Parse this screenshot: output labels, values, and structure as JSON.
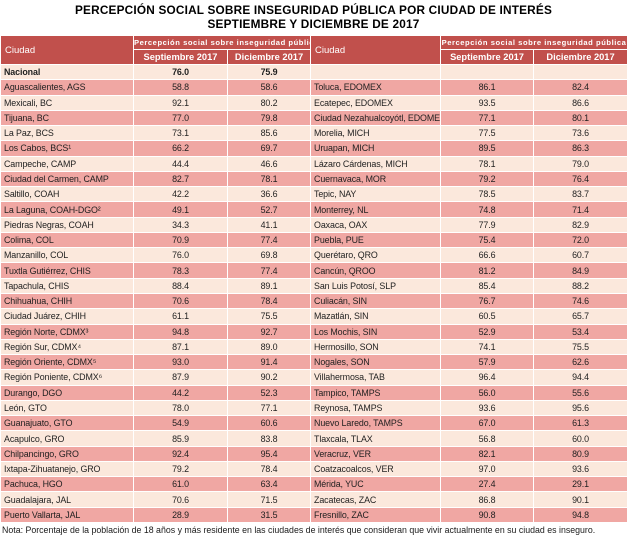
{
  "title": {
    "line1": "PERCEPCIÓN SOCIAL SOBRE INSEGURIDAD PÚBLICA POR CIUDAD DE INTERÉS",
    "line2": "SEPTIEMBRE Y DICIEMBRE DE 2017"
  },
  "colors": {
    "header_bg": "#C1504C",
    "row_dark": "#F0A7A3",
    "row_light": "#FBE8DC",
    "border": "#FFFFFF",
    "header_text": "#FFFFFF",
    "body_text": "#1F1F1F"
  },
  "table": {
    "city_header": "Ciudad",
    "group_header": "Percepción social sobre inseguridad pública",
    "sub_headers": {
      "september": "Septiembre 2017",
      "december": "Diciembre 2017"
    },
    "national": {
      "city": "Nacional",
      "sep": "76.0",
      "dec": "75.9"
    },
    "left_rows": [
      {
        "city": "Aguascalientes, AGS",
        "sep": "58.8",
        "dec": "58.6"
      },
      {
        "city": "Mexicali, BC",
        "sep": "92.1",
        "dec": "80.2"
      },
      {
        "city": "Tijuana, BC",
        "sep": "77.0",
        "dec": "79.8"
      },
      {
        "city": "La Paz, BCS",
        "sep": "73.1",
        "dec": "85.6"
      },
      {
        "city": "Los Cabos, BCS¹",
        "sep": "66.2",
        "dec": "69.7"
      },
      {
        "city": "Campeche, CAMP",
        "sep": "44.4",
        "dec": "46.6"
      },
      {
        "city": "Ciudad del Carmen, CAMP",
        "sep": "82.7",
        "dec": "78.1"
      },
      {
        "city": "Saltillo, COAH",
        "sep": "42.2",
        "dec": "36.6"
      },
      {
        "city": "La Laguna, COAH-DGO²",
        "sep": "49.1",
        "dec": "52.7"
      },
      {
        "city": "Piedras Negras, COAH",
        "sep": "34.3",
        "dec": "41.1"
      },
      {
        "city": "Colima, COL",
        "sep": "70.9",
        "dec": "77.4"
      },
      {
        "city": "Manzanillo, COL",
        "sep": "76.0",
        "dec": "69.8"
      },
      {
        "city": "Tuxtla Gutiérrez, CHIS",
        "sep": "78.3",
        "dec": "77.4"
      },
      {
        "city": "Tapachula, CHIS",
        "sep": "88.4",
        "dec": "89.1"
      },
      {
        "city": "Chihuahua, CHIH",
        "sep": "70.6",
        "dec": "78.4"
      },
      {
        "city": "Ciudad Juárez, CHIH",
        "sep": "61.1",
        "dec": "75.5"
      },
      {
        "city": "Región Norte, CDMX³",
        "sep": "94.8",
        "dec": "92.7"
      },
      {
        "city": "Región Sur, CDMX⁴",
        "sep": "87.1",
        "dec": "89.0"
      },
      {
        "city": "Región Oriente, CDMX⁵",
        "sep": "93.0",
        "dec": "91.4"
      },
      {
        "city": "Región Poniente, CDMX⁶",
        "sep": "87.9",
        "dec": "90.2"
      },
      {
        "city": "Durango, DGO",
        "sep": "44.2",
        "dec": "52.3"
      },
      {
        "city": "León, GTO",
        "sep": "78.0",
        "dec": "77.1"
      },
      {
        "city": "Guanajuato, GTO",
        "sep": "54.9",
        "dec": "60.6"
      },
      {
        "city": "Acapulco, GRO",
        "sep": "85.9",
        "dec": "83.8"
      },
      {
        "city": "Chilpancingo, GRO",
        "sep": "92.4",
        "dec": "95.4"
      },
      {
        "city": "Ixtapa-Zihuatanejo, GRO",
        "sep": "79.2",
        "dec": "78.4"
      },
      {
        "city": "Pachuca, HGO",
        "sep": "61.0",
        "dec": "63.4"
      },
      {
        "city": "Guadalajara, JAL",
        "sep": "70.6",
        "dec": "71.5"
      },
      {
        "city": "Puerto Vallarta, JAL",
        "sep": "28.9",
        "dec": "31.5"
      }
    ],
    "right_rows": [
      {
        "city": "Toluca, EDOMEX",
        "sep": "86.1",
        "dec": "82.4"
      },
      {
        "city": "Ecatepec, EDOMEX",
        "sep": "93.5",
        "dec": "86.6"
      },
      {
        "city": "Ciudad Nezahualcoyótl, EDOMEX",
        "sep": "77.1",
        "dec": "80.1"
      },
      {
        "city": "Morelia, MICH",
        "sep": "77.5",
        "dec": "73.6"
      },
      {
        "city": "Uruapan, MICH",
        "sep": "89.5",
        "dec": "86.3"
      },
      {
        "city": "Lázaro Cárdenas, MICH",
        "sep": "78.1",
        "dec": "79.0"
      },
      {
        "city": "Cuernavaca, MOR",
        "sep": "79.2",
        "dec": "76.4"
      },
      {
        "city": "Tepic, NAY",
        "sep": "78.5",
        "dec": "83.7"
      },
      {
        "city": "Monterrey, NL",
        "sep": "74.8",
        "dec": "71.4"
      },
      {
        "city": "Oaxaca, OAX",
        "sep": "77.9",
        "dec": "82.9"
      },
      {
        "city": "Puebla, PUE",
        "sep": "75.4",
        "dec": "72.0"
      },
      {
        "city": "Querétaro, QRO",
        "sep": "66.6",
        "dec": "60.7"
      },
      {
        "city": "Cancún, QROO",
        "sep": "81.2",
        "dec": "84.9"
      },
      {
        "city": "San Luis Potosí, SLP",
        "sep": "85.4",
        "dec": "88.2"
      },
      {
        "city": "Culiacán, SIN",
        "sep": "76.7",
        "dec": "74.6"
      },
      {
        "city": "Mazatlán, SIN",
        "sep": "60.5",
        "dec": "65.7"
      },
      {
        "city": "Los Mochis, SIN",
        "sep": "52.9",
        "dec": "53.4"
      },
      {
        "city": "Hermosillo, SON",
        "sep": "74.1",
        "dec": "75.5"
      },
      {
        "city": "Nogales, SON",
        "sep": "57.9",
        "dec": "62.6"
      },
      {
        "city": "Villahermosa, TAB",
        "sep": "96.4",
        "dec": "94.4"
      },
      {
        "city": "Tampico, TAMPS",
        "sep": "56.0",
        "dec": "55.6"
      },
      {
        "city": "Reynosa, TAMPS",
        "sep": "93.6",
        "dec": "95.6"
      },
      {
        "city": "Nuevo Laredo, TAMPS",
        "sep": "67.0",
        "dec": "61.3"
      },
      {
        "city": "Tlaxcala, TLAX",
        "sep": "56.8",
        "dec": "60.0"
      },
      {
        "city": "Veracruz, VER",
        "sep": "82.1",
        "dec": "80.9"
      },
      {
        "city": "Coatzacoalcos, VER",
        "sep": "97.0",
        "dec": "93.6"
      },
      {
        "city": "Mérida, YUC",
        "sep": "27.4",
        "dec": "29.1"
      },
      {
        "city": "Zacatecas, ZAC",
        "sep": "86.8",
        "dec": "90.1"
      },
      {
        "city": "Fresnillo, ZAC",
        "sep": "90.8",
        "dec": "94.8"
      }
    ]
  },
  "note": {
    "text": "Nota: Porcentaje de la población de 18 años y más residente en las ciudades de interés que consideran que vivir actualmente en su ciudad es inseguro."
  }
}
